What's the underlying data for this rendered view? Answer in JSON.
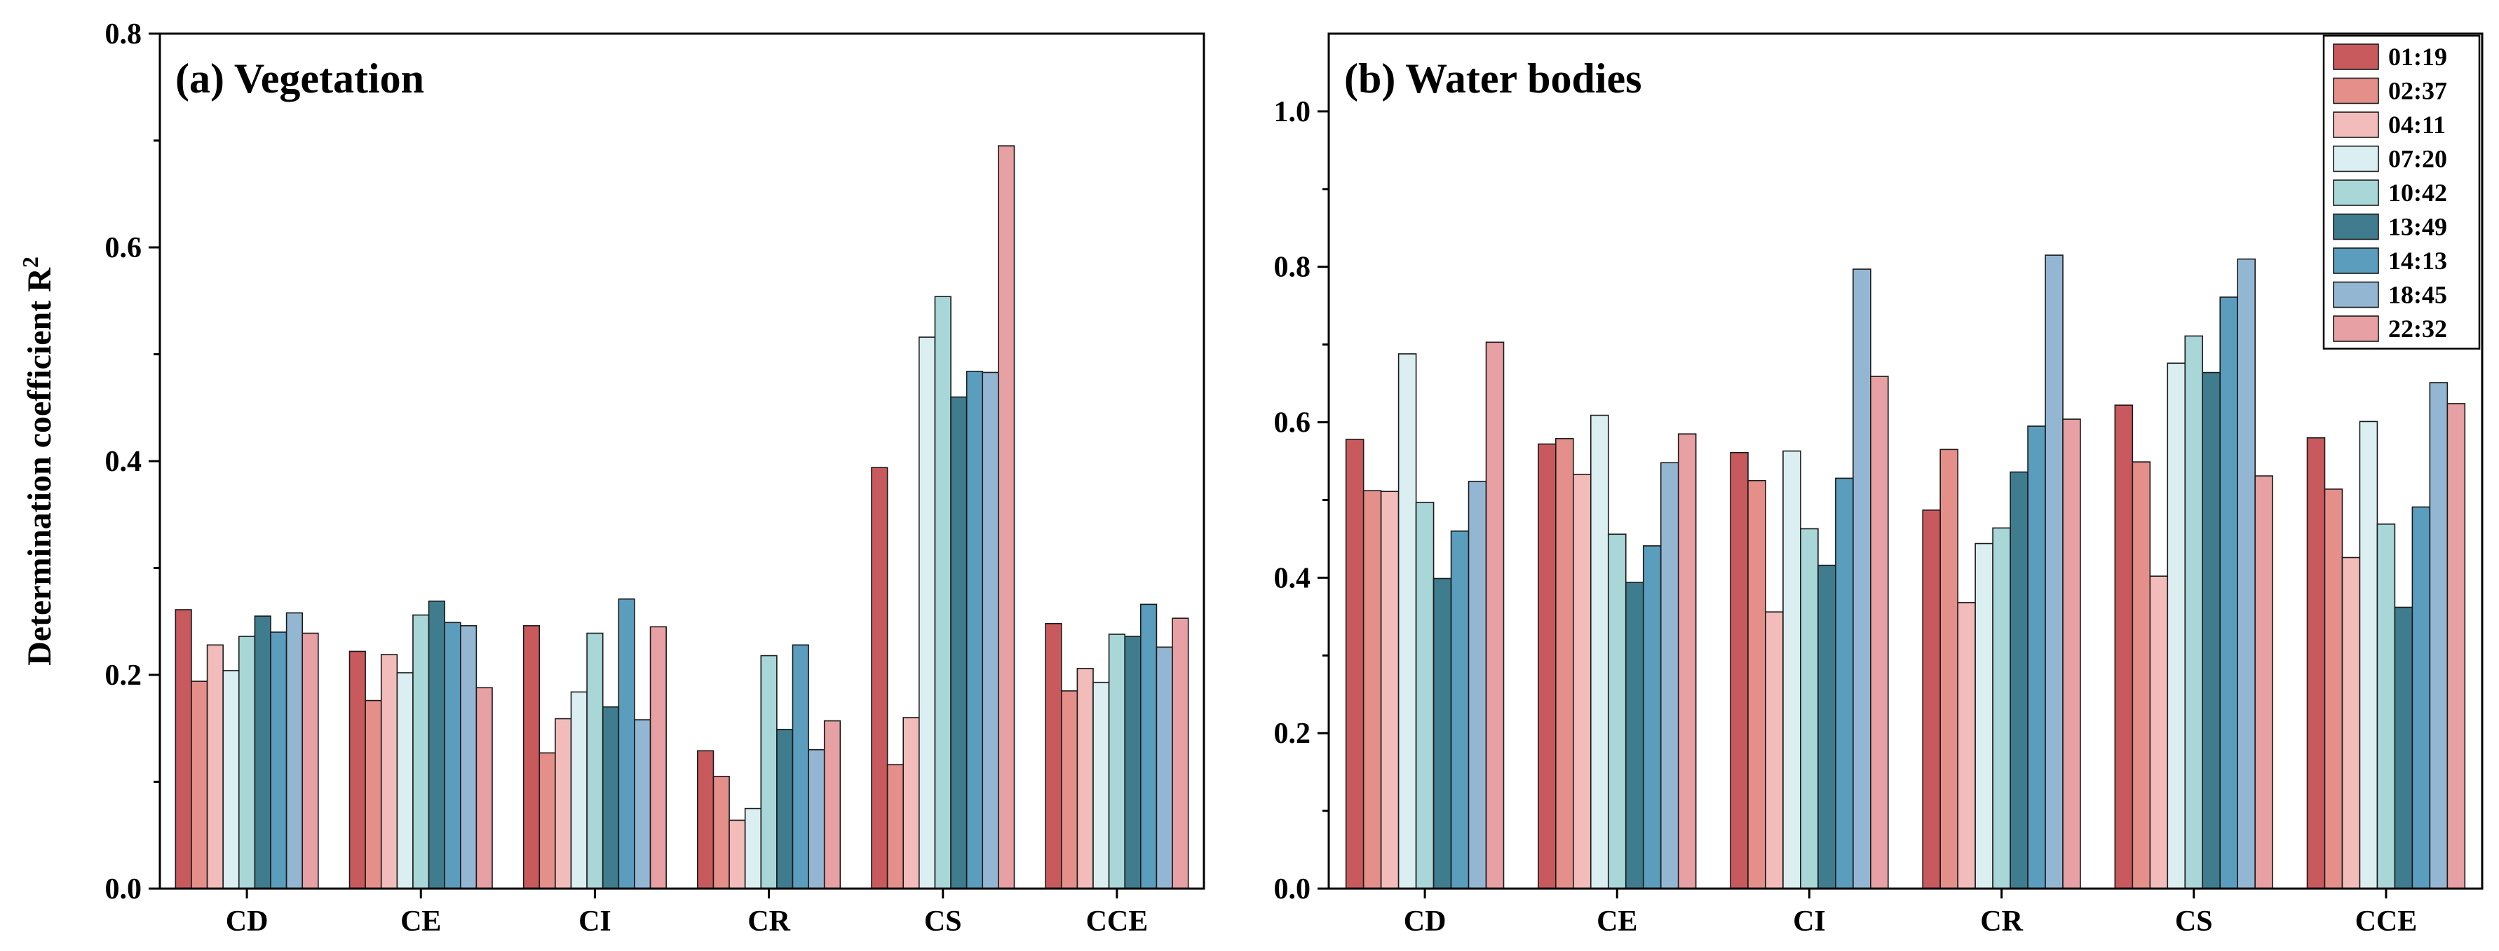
{
  "chart_data": [
    {
      "type": "bar",
      "title": "(a) Vegetation",
      "ylabel": "Determination coefficient R",
      "ylabel_superscript": "2",
      "xlabel": "",
      "ylim": [
        0,
        0.8
      ],
      "yticks": [
        0.0,
        0.2,
        0.4,
        0.6,
        0.8
      ],
      "ytick_labels": [
        "0.0",
        "0.2",
        "0.4",
        "0.6",
        "0.8"
      ],
      "categories": [
        "CD",
        "CE",
        "CI",
        "CR",
        "CS",
        "CCE"
      ],
      "series": [
        {
          "name": "01:19",
          "color": "#c85a5e",
          "values": [
            0.261,
            0.222,
            0.246,
            0.129,
            0.394,
            0.248
          ]
        },
        {
          "name": "02:37",
          "color": "#e58f8a",
          "values": [
            0.194,
            0.176,
            0.127,
            0.105,
            0.116,
            0.185
          ]
        },
        {
          "name": "04:11",
          "color": "#f2bcba",
          "values": [
            0.228,
            0.219,
            0.159,
            0.064,
            0.16,
            0.206
          ]
        },
        {
          "name": "07:20",
          "color": "#dbeef2",
          "values": [
            0.204,
            0.202,
            0.184,
            0.075,
            0.516,
            0.193
          ]
        },
        {
          "name": "10:42",
          "color": "#a9d6d7",
          "values": [
            0.236,
            0.256,
            0.239,
            0.218,
            0.554,
            0.238
          ]
        },
        {
          "name": "13:49",
          "color": "#3e7c8e",
          "values": [
            0.255,
            0.269,
            0.17,
            0.149,
            0.46,
            0.236
          ]
        },
        {
          "name": "14:13",
          "color": "#5b9dbd",
          "values": [
            0.24,
            0.249,
            0.271,
            0.228,
            0.484,
            0.266
          ]
        },
        {
          "name": "18:45",
          "color": "#93b7d3",
          "values": [
            0.258,
            0.246,
            0.158,
            0.13,
            0.483,
            0.226
          ]
        },
        {
          "name": "22:32",
          "color": "#e7a0a3",
          "values": [
            0.239,
            0.188,
            0.245,
            0.157,
            0.695,
            0.253
          ]
        }
      ]
    },
    {
      "type": "bar",
      "title": "(b) Water bodies",
      "ylabel": "",
      "xlabel": "",
      "ylim": [
        0,
        1.1
      ],
      "yticks": [
        0.0,
        0.2,
        0.4,
        0.6,
        0.8,
        1.0
      ],
      "ytick_labels": [
        "0.0",
        "0.2",
        "0.4",
        "0.6",
        "0.8",
        "1.0"
      ],
      "categories": [
        "CD",
        "CE",
        "CI",
        "CR",
        "CS",
        "CCE"
      ],
      "legend": "top-right",
      "series": [
        {
          "name": "01:19",
          "color": "#c85a5e",
          "values": [
            0.578,
            0.572,
            0.561,
            0.487,
            0.622,
            0.58
          ]
        },
        {
          "name": "02:37",
          "color": "#e58f8a",
          "values": [
            0.512,
            0.579,
            0.525,
            0.565,
            0.549,
            0.514
          ]
        },
        {
          "name": "04:11",
          "color": "#f2bcba",
          "values": [
            0.511,
            0.533,
            0.356,
            0.368,
            0.402,
            0.426
          ]
        },
        {
          "name": "07:20",
          "color": "#dbeef2",
          "values": [
            0.688,
            0.609,
            0.563,
            0.444,
            0.676,
            0.601
          ]
        },
        {
          "name": "10:42",
          "color": "#a9d6d7",
          "values": [
            0.497,
            0.456,
            0.463,
            0.464,
            0.711,
            0.469
          ]
        },
        {
          "name": "13:49",
          "color": "#3e7c8e",
          "values": [
            0.399,
            0.394,
            0.416,
            0.536,
            0.664,
            0.362
          ]
        },
        {
          "name": "14:13",
          "color": "#5b9dbd",
          "values": [
            0.46,
            0.441,
            0.528,
            0.595,
            0.761,
            0.491
          ]
        },
        {
          "name": "18:45",
          "color": "#93b7d3",
          "values": [
            0.524,
            0.548,
            0.797,
            0.815,
            0.81,
            0.651
          ]
        },
        {
          "name": "22:32",
          "color": "#e7a0a3",
          "values": [
            0.703,
            0.585,
            0.659,
            0.604,
            0.531,
            0.624
          ]
        }
      ]
    }
  ]
}
